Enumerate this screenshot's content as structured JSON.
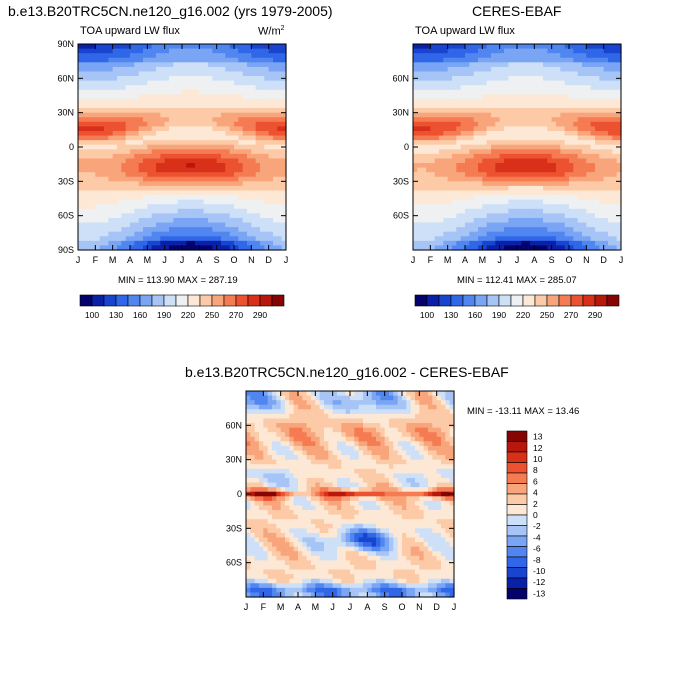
{
  "panels": {
    "model": {
      "title": "b.e13.B20TRC5CN.ne120_g16.002 (yrs 1979-2005)",
      "subtitle": "TOA upward LW flux",
      "units": "W/m",
      "units_sup": "2",
      "minmax": "MIN = 113.90  MAX = 287.19"
    },
    "obs": {
      "title": "CERES-EBAF",
      "subtitle": "TOA upward LW flux",
      "minmax": "MIN = 112.41  MAX = 285.07"
    },
    "diff": {
      "title": "b.e13.B20TRC5CN.ne120_g16.002 - CERES-EBAF",
      "minmax": "MIN = -13.11  MAX =  13.46"
    }
  },
  "chart_data": [
    {
      "type": "heatmap",
      "id": "model",
      "title": "b.e13.B20TRC5CN.ne120_g16.002 (yrs 1979-2005)",
      "subtitle": "TOA upward LW flux",
      "units": "W/m2",
      "x_ticks": [
        "J",
        "F",
        "M",
        "A",
        "M",
        "J",
        "J",
        "A",
        "S",
        "O",
        "N",
        "D",
        "J"
      ],
      "y_ticks": [
        "90N",
        "60N",
        "30N",
        "0",
        "30S",
        "60S",
        "90S"
      ],
      "ylim": [
        -90,
        90
      ],
      "min": 113.9,
      "max": 287.19,
      "colorbar": {
        "levels": [
          100,
          115,
          130,
          145,
          160,
          175,
          190,
          205,
          220,
          235,
          250,
          265,
          270,
          280,
          290
        ],
        "labels": [
          "100",
          "130",
          "160",
          "190",
          "220",
          "250",
          "270",
          "290"
        ],
        "colors": [
          "#04026b",
          "#0a20a8",
          "#1844cf",
          "#3066e8",
          "#5186f0",
          "#7aa5f4",
          "#a6c5f6",
          "#cde0f7",
          "#eef0f2",
          "#fde8d5",
          "#fccaa6",
          "#f9a57c",
          "#f57b53",
          "#ec5230",
          "#d9301a",
          "#b8170c",
          "#850505"
        ]
      }
    },
    {
      "type": "heatmap",
      "id": "obs",
      "title": "CERES-EBAF",
      "subtitle": "TOA upward LW flux",
      "x_ticks": [
        "J",
        "F",
        "M",
        "A",
        "M",
        "J",
        "J",
        "A",
        "S",
        "O",
        "N",
        "D",
        "J"
      ],
      "y_ticks": [
        "60N",
        "30N",
        "0",
        "30S",
        "60S"
      ],
      "ylim": [
        -90,
        90
      ],
      "min": 112.41,
      "max": 285.07,
      "colorbar": {
        "labels": [
          "100",
          "130",
          "160",
          "190",
          "220",
          "250",
          "270",
          "290"
        ]
      }
    },
    {
      "type": "heatmap",
      "id": "diff",
      "title": "b.e13.B20TRC5CN.ne120_g16.002 - CERES-EBAF",
      "x_ticks": [
        "J",
        "F",
        "M",
        "A",
        "M",
        "J",
        "J",
        "A",
        "S",
        "O",
        "N",
        "D",
        "J"
      ],
      "y_ticks": [
        "60N",
        "30N",
        "0",
        "30S",
        "60S"
      ],
      "ylim": [
        -90,
        90
      ],
      "min": -13.11,
      "max": 13.46,
      "colorbar": {
        "labels": [
          "13",
          "12",
          "10",
          "8",
          "6",
          "4",
          "2",
          "0",
          "-2",
          "-4",
          "-6",
          "-8",
          "-10",
          "-12",
          "-13"
        ],
        "colors": [
          "#850505",
          "#b8170c",
          "#d9301a",
          "#ec5230",
          "#f57b53",
          "#f9a57c",
          "#fccaa6",
          "#fde8d5",
          "#cde0f7",
          "#a6c5f6",
          "#7aa5f4",
          "#5186f0",
          "#3066e8",
          "#1844cf",
          "#0a20a8",
          "#04026b"
        ]
      }
    }
  ]
}
